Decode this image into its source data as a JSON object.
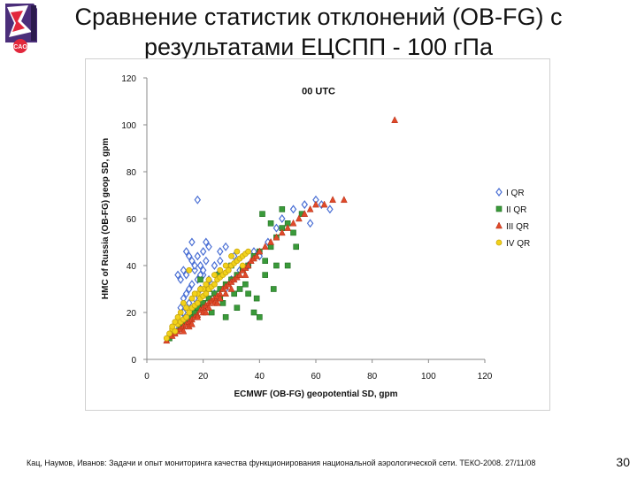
{
  "slide": {
    "title_line1": "Сравнение статистик отклонений (OB-FG) с",
    "title_line2": "результатами ЕЦСПП - 100 гПа",
    "footer": "Кац, Наумов, Иванов: Задачи и опыт мониторинга качества функционирования национальной аэрологической сети. ТЕКО-2008. 27/11/08",
    "page_number": "30",
    "logo_text": "CAO"
  },
  "chart_data": {
    "type": "scatter",
    "title": "00 UTC",
    "xlabel": "ECMWF (OB-FG) geopotential SD, gpm",
    "ylabel": "HMC of Russia (OB-FG) geop SD, gpm",
    "xlim": [
      0,
      120
    ],
    "ylim": [
      0,
      120
    ],
    "xticks": [
      "0",
      "20",
      "40",
      "60",
      "80",
      "100",
      "120"
    ],
    "yticks": [
      "0",
      "20",
      "40",
      "60",
      "80",
      "100",
      "120"
    ],
    "grid": false,
    "legend_position": "right",
    "colors": {
      "I QR": "#4a6fd4",
      "II QR": "#3a9a3a",
      "III QR": "#e04a2a",
      "IV QR": "#f2d21a"
    },
    "series": [
      {
        "name": "I QR",
        "marker": "diamond",
        "points": [
          [
            8,
            10
          ],
          [
            9,
            12
          ],
          [
            10,
            14
          ],
          [
            11,
            16
          ],
          [
            12,
            18
          ],
          [
            12,
            22
          ],
          [
            13,
            20
          ],
          [
            13,
            26
          ],
          [
            14,
            28
          ],
          [
            15,
            24
          ],
          [
            15,
            30
          ],
          [
            16,
            32
          ],
          [
            16,
            20
          ],
          [
            17,
            26
          ],
          [
            17,
            38
          ],
          [
            18,
            34
          ],
          [
            18,
            44
          ],
          [
            19,
            30
          ],
          [
            19,
            40
          ],
          [
            20,
            46
          ],
          [
            20,
            36
          ],
          [
            21,
            42
          ],
          [
            22,
            48
          ],
          [
            23,
            32
          ],
          [
            24,
            40
          ],
          [
            25,
            36
          ],
          [
            26,
            42
          ],
          [
            12,
            34
          ],
          [
            13,
            38
          ],
          [
            14,
            46
          ],
          [
            15,
            44
          ],
          [
            16,
            50
          ],
          [
            17,
            40
          ],
          [
            18,
            68
          ],
          [
            19,
            36
          ],
          [
            20,
            38
          ],
          [
            22,
            34
          ],
          [
            24,
            28
          ],
          [
            28,
            30
          ],
          [
            30,
            34
          ],
          [
            33,
            38
          ],
          [
            36,
            40
          ],
          [
            40,
            44
          ],
          [
            43,
            50
          ],
          [
            46,
            56
          ],
          [
            48,
            60
          ],
          [
            52,
            64
          ],
          [
            56,
            66
          ],
          [
            58,
            58
          ],
          [
            60,
            68
          ],
          [
            62,
            66
          ],
          [
            65,
            64
          ],
          [
            11,
            36
          ],
          [
            14,
            36
          ],
          [
            16,
            42
          ],
          [
            21,
            50
          ],
          [
            26,
            46
          ],
          [
            28,
            48
          ],
          [
            31,
            44
          ],
          [
            38,
            46
          ]
        ]
      },
      {
        "name": "II QR",
        "marker": "square",
        "points": [
          [
            8,
            9
          ],
          [
            10,
            12
          ],
          [
            12,
            14
          ],
          [
            14,
            16
          ],
          [
            16,
            18
          ],
          [
            17,
            20
          ],
          [
            18,
            22
          ],
          [
            20,
            24
          ],
          [
            22,
            26
          ],
          [
            23,
            20
          ],
          [
            24,
            28
          ],
          [
            26,
            30
          ],
          [
            27,
            24
          ],
          [
            28,
            32
          ],
          [
            30,
            34
          ],
          [
            31,
            28
          ],
          [
            32,
            36
          ],
          [
            34,
            38
          ],
          [
            35,
            32
          ],
          [
            36,
            40
          ],
          [
            38,
            44
          ],
          [
            39,
            26
          ],
          [
            40,
            46
          ],
          [
            42,
            42
          ],
          [
            44,
            48
          ],
          [
            46,
            52
          ],
          [
            48,
            56
          ],
          [
            50,
            58
          ],
          [
            52,
            54
          ],
          [
            55,
            62
          ],
          [
            28,
            18
          ],
          [
            32,
            22
          ],
          [
            40,
            18
          ],
          [
            45,
            30
          ],
          [
            50,
            40
          ],
          [
            38,
            20
          ],
          [
            26,
            26
          ],
          [
            30,
            40
          ],
          [
            42,
            36
          ],
          [
            48,
            64
          ],
          [
            41,
            62
          ],
          [
            44,
            58
          ],
          [
            36,
            28
          ],
          [
            22,
            30
          ],
          [
            19,
            34
          ],
          [
            25,
            36
          ],
          [
            33,
            30
          ],
          [
            46,
            40
          ],
          [
            53,
            48
          ],
          [
            20,
            22
          ]
        ]
      },
      {
        "name": "III QR",
        "marker": "triangle",
        "points": [
          [
            7,
            8
          ],
          [
            9,
            10
          ],
          [
            10,
            11
          ],
          [
            11,
            12
          ],
          [
            12,
            13
          ],
          [
            13,
            14
          ],
          [
            14,
            15
          ],
          [
            15,
            16
          ],
          [
            16,
            17
          ],
          [
            17,
            18
          ],
          [
            18,
            19
          ],
          [
            19,
            21
          ],
          [
            20,
            22
          ],
          [
            21,
            23
          ],
          [
            22,
            24
          ],
          [
            23,
            25
          ],
          [
            24,
            26
          ],
          [
            25,
            27
          ],
          [
            26,
            28
          ],
          [
            27,
            30
          ],
          [
            28,
            31
          ],
          [
            29,
            32
          ],
          [
            30,
            33
          ],
          [
            31,
            34
          ],
          [
            32,
            35
          ],
          [
            33,
            36
          ],
          [
            34,
            38
          ],
          [
            35,
            39
          ],
          [
            36,
            40
          ],
          [
            37,
            42
          ],
          [
            38,
            43
          ],
          [
            39,
            44
          ],
          [
            40,
            46
          ],
          [
            42,
            48
          ],
          [
            44,
            50
          ],
          [
            46,
            52
          ],
          [
            48,
            54
          ],
          [
            50,
            56
          ],
          [
            52,
            58
          ],
          [
            54,
            60
          ],
          [
            56,
            62
          ],
          [
            58,
            64
          ],
          [
            60,
            66
          ],
          [
            63,
            66
          ],
          [
            66,
            68
          ],
          [
            70,
            68
          ],
          [
            88,
            102
          ],
          [
            15,
            14
          ],
          [
            18,
            18
          ],
          [
            20,
            20
          ],
          [
            22,
            22
          ],
          [
            24,
            24
          ],
          [
            26,
            26
          ],
          [
            28,
            28
          ],
          [
            30,
            30
          ],
          [
            13,
            12
          ],
          [
            16,
            15
          ],
          [
            21,
            20
          ],
          [
            25,
            24
          ],
          [
            35,
            36
          ]
        ]
      },
      {
        "name": "IV QR",
        "marker": "circle",
        "points": [
          [
            7,
            9
          ],
          [
            8,
            11
          ],
          [
            9,
            13
          ],
          [
            10,
            12
          ],
          [
            11,
            15
          ],
          [
            12,
            16
          ],
          [
            13,
            17
          ],
          [
            14,
            18
          ],
          [
            15,
            20
          ],
          [
            16,
            22
          ],
          [
            17,
            23
          ],
          [
            18,
            24
          ],
          [
            19,
            26
          ],
          [
            20,
            27
          ],
          [
            21,
            28
          ],
          [
            22,
            30
          ],
          [
            23,
            31
          ],
          [
            24,
            32
          ],
          [
            25,
            34
          ],
          [
            26,
            35
          ],
          [
            27,
            36
          ],
          [
            28,
            37
          ],
          [
            29,
            38
          ],
          [
            30,
            40
          ],
          [
            31,
            41
          ],
          [
            32,
            42
          ],
          [
            33,
            43
          ],
          [
            34,
            44
          ],
          [
            35,
            45
          ],
          [
            36,
            46
          ],
          [
            10,
            16
          ],
          [
            12,
            20
          ],
          [
            14,
            22
          ],
          [
            16,
            26
          ],
          [
            18,
            28
          ],
          [
            20,
            30
          ],
          [
            22,
            34
          ],
          [
            24,
            36
          ],
          [
            15,
            38
          ],
          [
            13,
            24
          ],
          [
            11,
            18
          ],
          [
            9,
            14
          ],
          [
            17,
            28
          ],
          [
            19,
            30
          ],
          [
            21,
            32
          ],
          [
            26,
            38
          ],
          [
            28,
            40
          ],
          [
            30,
            44
          ],
          [
            32,
            46
          ],
          [
            34,
            40
          ]
        ]
      }
    ]
  }
}
